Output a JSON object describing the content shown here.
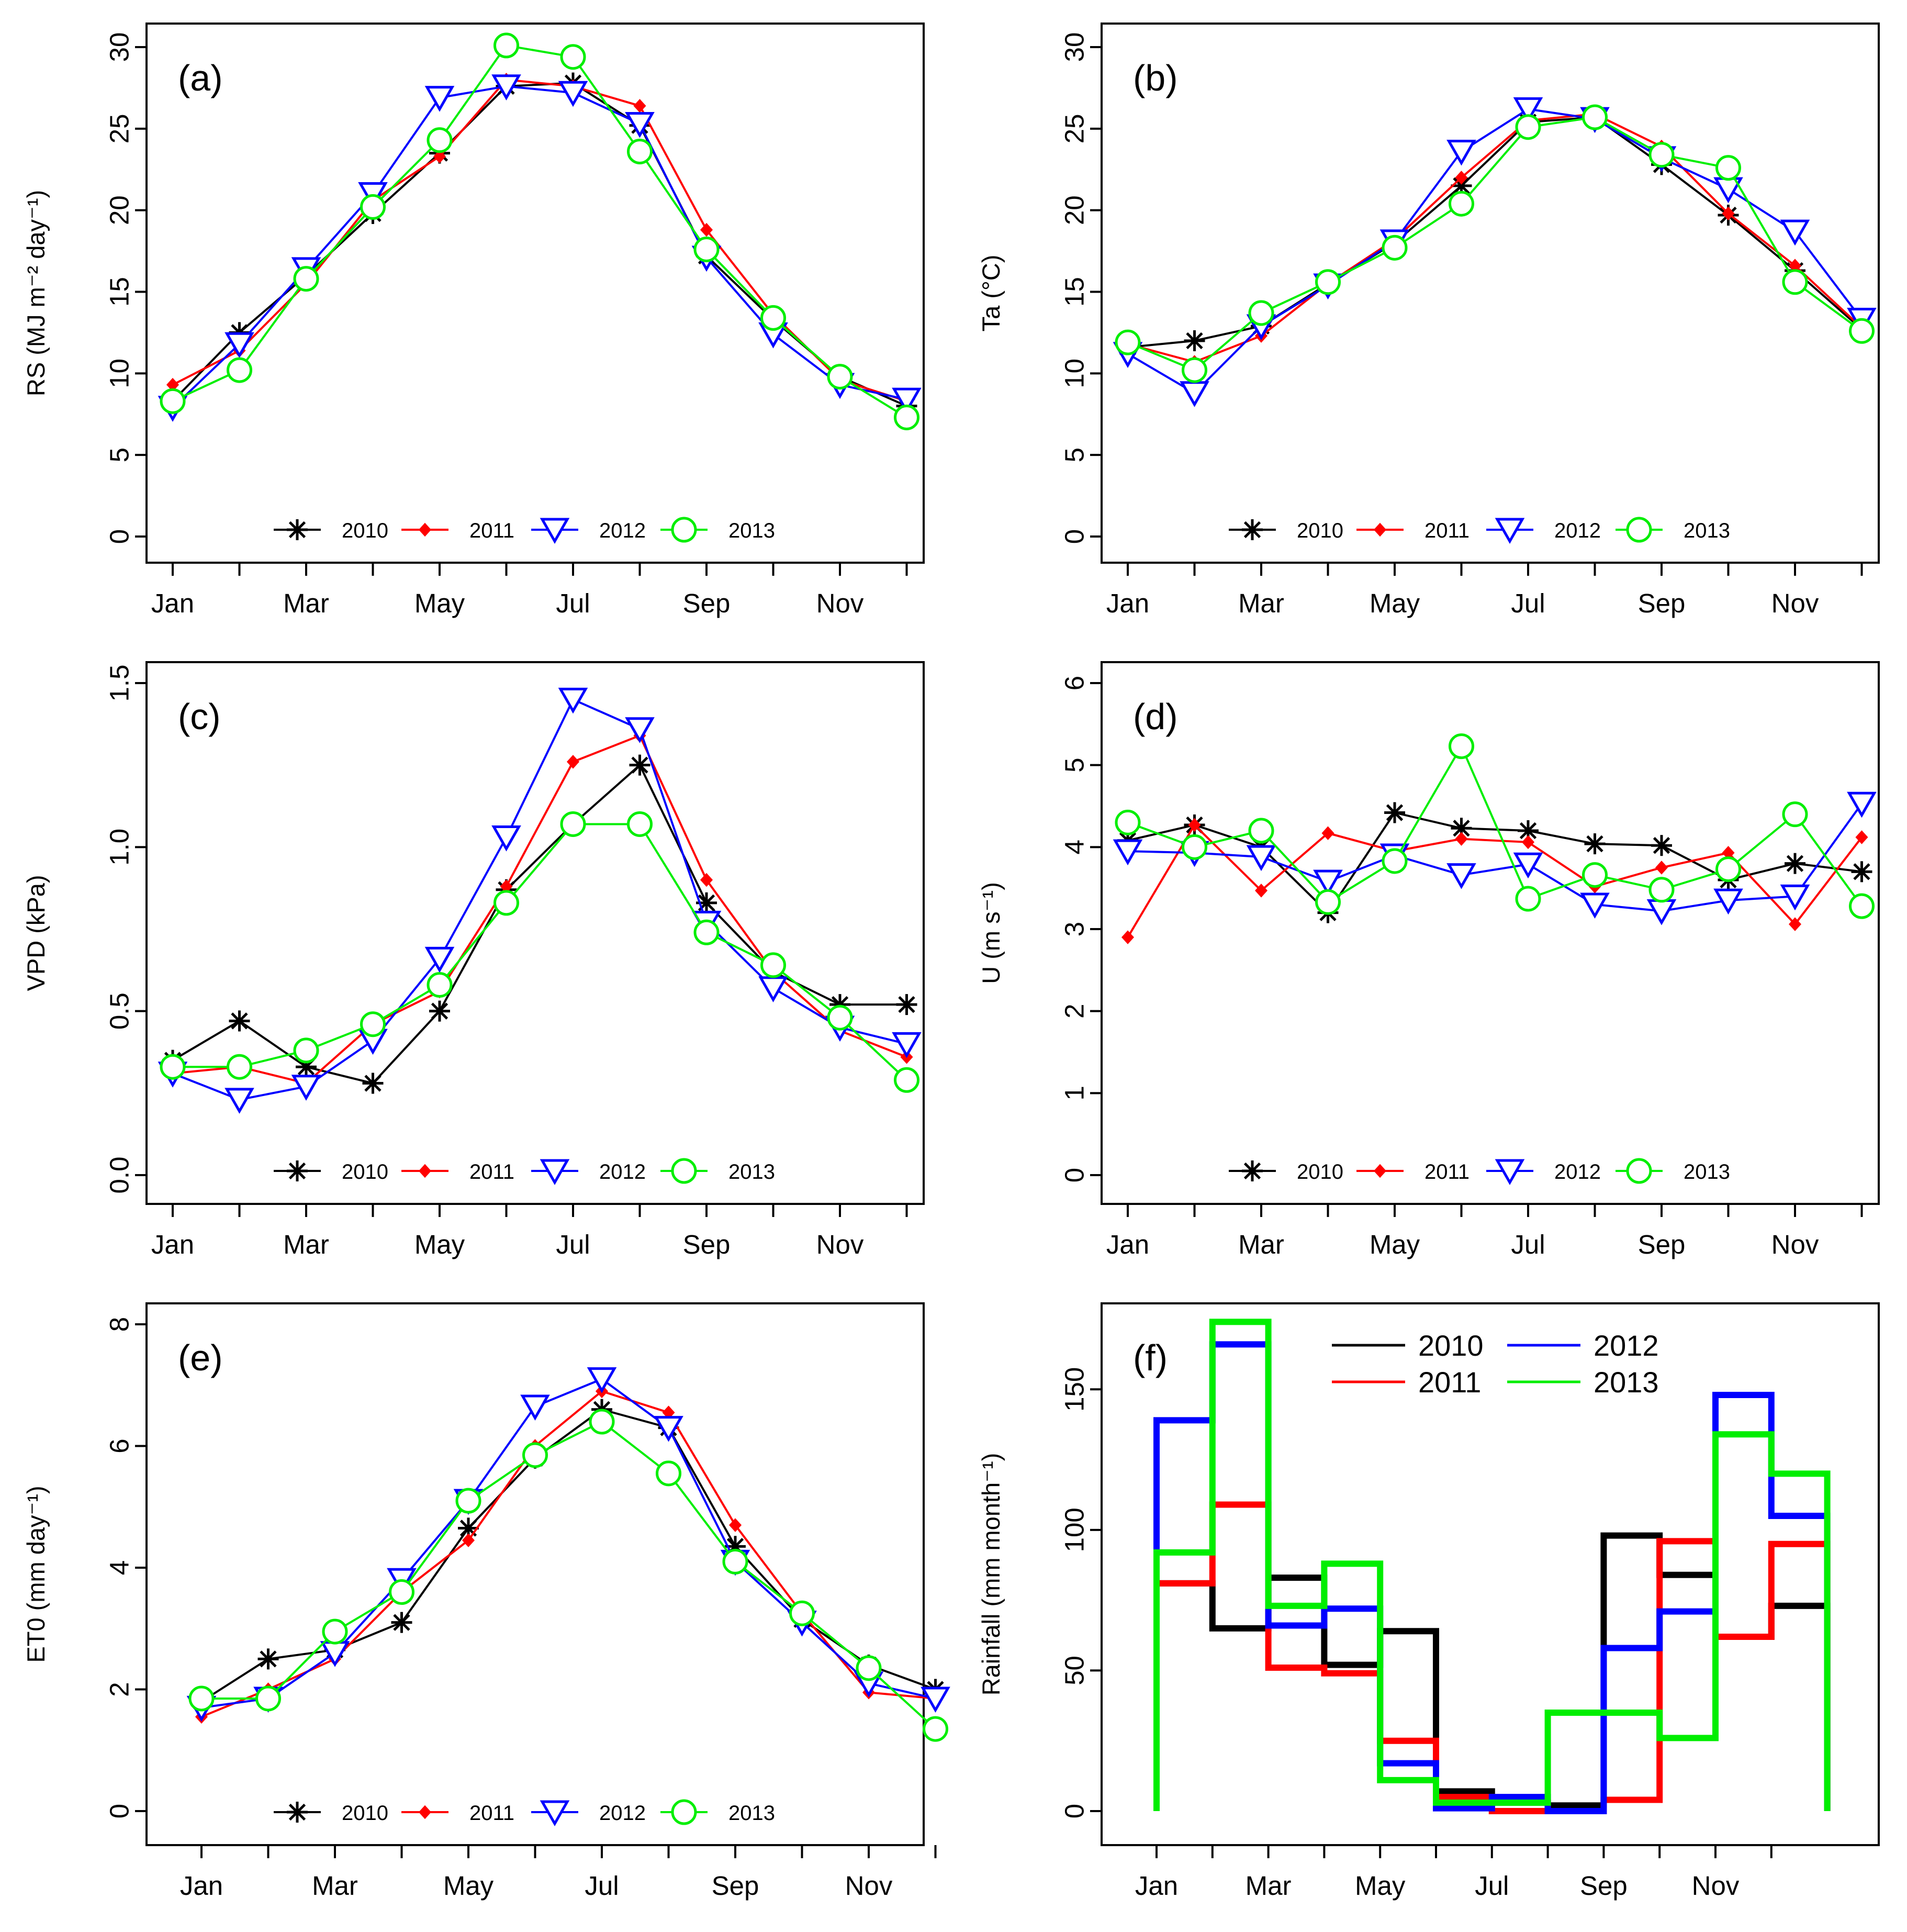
{
  "figure": {
    "description_free": true
  },
  "colors": {
    "2010": "#000000",
    "2011": "#ff0000",
    "2012": "#0000ff",
    "2013": "#00ee00"
  },
  "chart_data": [
    {
      "id": "a",
      "type": "line",
      "panel_label": "(a)",
      "ylabel": "RS (MJ m⁻² day⁻¹)",
      "ylim": [
        0,
        30
      ],
      "yticks": [
        0,
        5,
        10,
        15,
        20,
        25,
        30
      ],
      "xticks": [
        "Jan",
        "Mar",
        "May",
        "Jul",
        "Sep",
        "Nov"
      ],
      "legend_position": "bottom",
      "series": [
        {
          "name": "2010",
          "marker": "star",
          "values": [
            8.3,
            12.5,
            16.0,
            19.8,
            23.5,
            27.6,
            27.8,
            25.2,
            17.2,
            13.3,
            9.8,
            8.0
          ]
        },
        {
          "name": "2011",
          "marker": "diamond",
          "values": [
            9.3,
            11.4,
            15.5,
            20.6,
            23.3,
            28.0,
            27.6,
            26.4,
            18.8,
            13.6,
            9.6,
            8.3
          ]
        },
        {
          "name": "2012",
          "marker": "triangle-down",
          "values": [
            7.9,
            11.8,
            16.4,
            21.0,
            26.9,
            27.6,
            27.2,
            25.3,
            17.1,
            12.4,
            9.3,
            8.4
          ]
        },
        {
          "name": "2013",
          "marker": "circle",
          "values": [
            8.3,
            10.2,
            15.8,
            20.2,
            24.3,
            30.1,
            29.4,
            23.6,
            17.6,
            13.4,
            9.8,
            7.3
          ]
        }
      ]
    },
    {
      "id": "b",
      "type": "line",
      "panel_label": "(b)",
      "ylabel": "Ta (°C)",
      "ylim": [
        0,
        30
      ],
      "yticks": [
        0,
        5,
        10,
        15,
        20,
        25,
        30
      ],
      "xticks": [
        "Jan",
        "Mar",
        "May",
        "Jul",
        "Sep",
        "Nov"
      ],
      "legend_position": "bottom",
      "series": [
        {
          "name": "2010",
          "marker": "star",
          "values": [
            11.6,
            12.0,
            12.9,
            15.5,
            18.0,
            21.5,
            25.4,
            25.7,
            22.8,
            19.7,
            16.3,
            12.7
          ]
        },
        {
          "name": "2011",
          "marker": "diamond",
          "values": [
            11.8,
            10.7,
            12.3,
            15.5,
            18.2,
            22.0,
            25.5,
            25.9,
            23.9,
            19.8,
            16.6,
            12.8
          ]
        },
        {
          "name": "2012",
          "marker": "triangle-down",
          "values": [
            11.2,
            8.8,
            12.9,
            15.4,
            18.1,
            23.6,
            26.2,
            25.6,
            23.2,
            21.3,
            18.7,
            13.3
          ]
        },
        {
          "name": "2013",
          "marker": "circle",
          "values": [
            11.9,
            10.2,
            13.7,
            15.6,
            17.7,
            20.4,
            25.1,
            25.7,
            23.4,
            22.6,
            15.6,
            12.6
          ]
        }
      ]
    },
    {
      "id": "c",
      "type": "line",
      "panel_label": "(c)",
      "ylabel": "VPD (kPa)",
      "ylim": [
        0,
        1.5
      ],
      "yticks": [
        0.0,
        0.5,
        1.0,
        1.5
      ],
      "ytick_labels": [
        "0.0",
        "0.5",
        "1.0",
        "1.5"
      ],
      "xticks": [
        "Jan",
        "Mar",
        "May",
        "Jul",
        "Sep",
        "Nov"
      ],
      "legend_position": "bottom",
      "series": [
        {
          "name": "2010",
          "marker": "star",
          "values": [
            0.35,
            0.47,
            0.33,
            0.28,
            0.5,
            0.87,
            1.07,
            1.25,
            0.83,
            0.62,
            0.52,
            0.52
          ]
        },
        {
          "name": "2011",
          "marker": "diamond",
          "values": [
            0.31,
            0.33,
            0.28,
            0.46,
            0.56,
            0.88,
            1.26,
            1.34,
            0.9,
            0.62,
            0.44,
            0.36
          ]
        },
        {
          "name": "2012",
          "marker": "triangle-down",
          "values": [
            0.31,
            0.23,
            0.27,
            0.41,
            0.66,
            1.03,
            1.45,
            1.36,
            0.77,
            0.57,
            0.45,
            0.4
          ]
        },
        {
          "name": "2013",
          "marker": "circle",
          "values": [
            0.33,
            0.33,
            0.38,
            0.46,
            0.58,
            0.83,
            1.07,
            1.07,
            0.74,
            0.64,
            0.48,
            0.29
          ]
        }
      ]
    },
    {
      "id": "d",
      "type": "line",
      "panel_label": "(d)",
      "ylabel": "U (m s⁻¹)",
      "ylim": [
        0,
        6
      ],
      "yticks": [
        0,
        1,
        2,
        3,
        4,
        5,
        6
      ],
      "xticks": [
        "Jan",
        "Mar",
        "May",
        "Jul",
        "Sep",
        "Nov"
      ],
      "legend_position": "bottom",
      "series": [
        {
          "name": "2010",
          "marker": "star",
          "values": [
            4.08,
            4.27,
            4.0,
            3.2,
            4.42,
            4.23,
            4.2,
            4.04,
            4.02,
            3.6,
            3.8,
            3.7
          ]
        },
        {
          "name": "2011",
          "marker": "diamond",
          "values": [
            2.9,
            4.27,
            3.47,
            4.17,
            3.95,
            4.1,
            4.06,
            3.52,
            3.75,
            3.93,
            3.06,
            4.12
          ]
        },
        {
          "name": "2012",
          "marker": "triangle-down",
          "values": [
            3.95,
            3.93,
            3.88,
            3.58,
            3.9,
            3.66,
            3.79,
            3.3,
            3.22,
            3.35,
            3.4,
            4.53
          ]
        },
        {
          "name": "2013",
          "marker": "circle",
          "values": [
            4.3,
            4.0,
            4.2,
            3.33,
            3.83,
            5.23,
            3.37,
            3.66,
            3.48,
            3.73,
            4.4,
            3.28
          ]
        }
      ]
    },
    {
      "id": "e",
      "type": "line",
      "panel_label": "(e)",
      "ylabel": "ET0  (mm day⁻¹)",
      "ylim": [
        0,
        8
      ],
      "yticks": [
        0,
        2,
        4,
        6,
        8
      ],
      "xticks": [
        "Jan",
        "Mar",
        "May",
        "Jul",
        "Sep",
        "Nov"
      ],
      "legend_position": "bottom",
      "series": [
        {
          "name": "2010",
          "marker": "star",
          "values": [
            1.8,
            2.5,
            2.65,
            3.1,
            4.65,
            5.8,
            6.6,
            6.3,
            4.35,
            3.15,
            2.4,
            2.0
          ]
        },
        {
          "name": "2011",
          "marker": "diamond",
          "values": [
            1.55,
            2.0,
            2.5,
            3.6,
            4.45,
            6.0,
            6.9,
            6.55,
            4.7,
            3.25,
            1.95,
            1.85
          ]
        },
        {
          "name": "2012",
          "marker": "triangle-down",
          "values": [
            1.7,
            1.85,
            2.6,
            3.8,
            5.1,
            6.65,
            7.1,
            6.3,
            4.1,
            3.1,
            2.1,
            1.85
          ]
        },
        {
          "name": "2013",
          "marker": "circle",
          "values": [
            1.85,
            1.85,
            2.95,
            3.6,
            5.1,
            5.85,
            6.4,
            5.55,
            4.1,
            3.25,
            2.35,
            1.35
          ]
        }
      ]
    },
    {
      "id": "f",
      "type": "step",
      "panel_label": "(f)",
      "ylabel": "Rainfall  (mm month⁻¹)",
      "ylim": [
        0,
        175
      ],
      "yticks": [
        0,
        50,
        100,
        150
      ],
      "xticks": [
        "Jan",
        "Mar",
        "May",
        "Jul",
        "Sep",
        "Nov"
      ],
      "legend_position": "top",
      "series": [
        {
          "name": "2010",
          "values": [
            81,
            65,
            83,
            52,
            64,
            7,
            3,
            2,
            98,
            84,
            62,
            73
          ]
        },
        {
          "name": "2011",
          "values": [
            81,
            109,
            51,
            49,
            25,
            5,
            0,
            0,
            4,
            96,
            62,
            95
          ]
        },
        {
          "name": "2012",
          "values": [
            139,
            166,
            66,
            72,
            17,
            1,
            5,
            0,
            58,
            71,
            148,
            105
          ]
        },
        {
          "name": "2013",
          "values": [
            92,
            174,
            73,
            88,
            11,
            3,
            3,
            35,
            35,
            26,
            134,
            120
          ]
        }
      ]
    }
  ]
}
